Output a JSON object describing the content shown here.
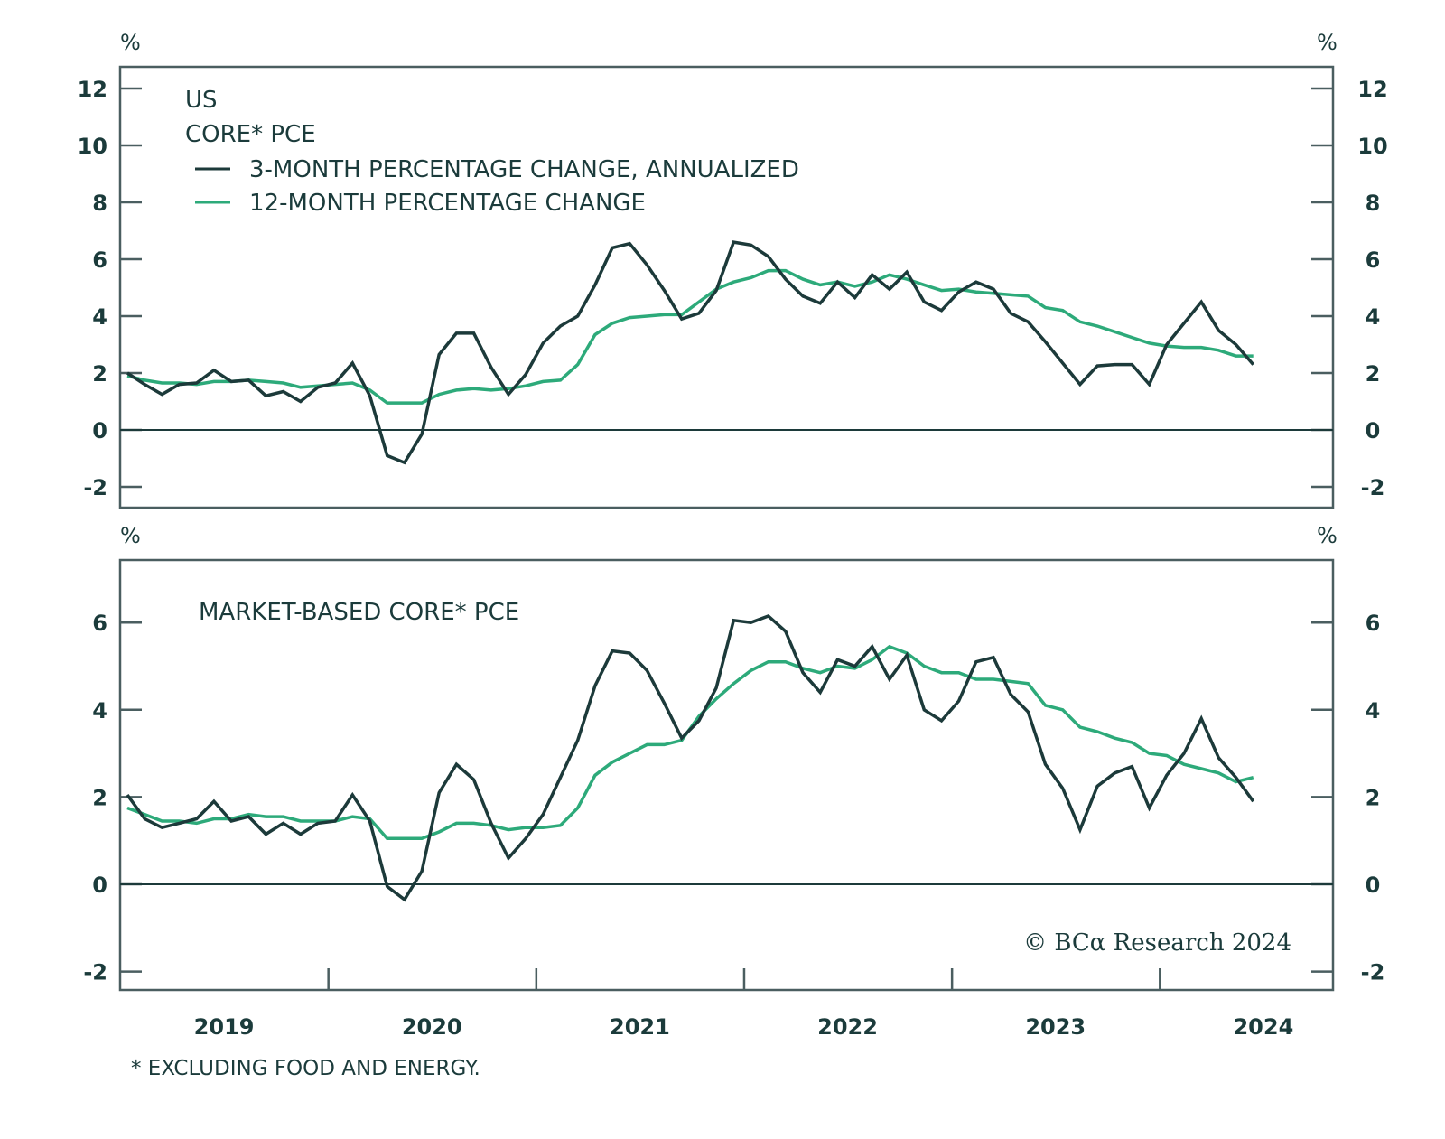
{
  "colors": {
    "dark": "#1c3a3a",
    "green": "#2daa7a",
    "axis": "#4a5e60"
  },
  "footnote": "* EXCLUDING FOOD AND ENERGY.",
  "copyright": "© BCα Research 2024",
  "chart_data": [
    {
      "type": "line",
      "title": "US",
      "subtitle": "CORE* PCE",
      "ylabel_left": "%",
      "ylabel_right": "%",
      "ylim": [
        -2.7,
        12.7
      ],
      "yticks": [
        -2,
        0,
        2,
        4,
        6,
        8,
        10,
        12
      ],
      "x_start": "2019-01",
      "x_frequency": "monthly",
      "legend": [
        "3-MONTH PERCENTAGE CHANGE, ANNUALIZED",
        "12-MONTH PERCENTAGE CHANGE"
      ],
      "legend_position": "top-left",
      "series": [
        {
          "name": "3-MONTH PERCENTAGE CHANGE, ANNUALIZED",
          "color": "dark",
          "values": [
            2.0,
            1.6,
            1.25,
            1.6,
            1.65,
            2.1,
            1.7,
            1.75,
            1.2,
            1.35,
            1.0,
            1.5,
            1.65,
            2.35,
            1.2,
            -0.9,
            -1.15,
            -0.15,
            2.65,
            3.4,
            3.4,
            2.2,
            1.25,
            1.95,
            3.05,
            3.65,
            4.0,
            5.1,
            6.4,
            6.55,
            5.8,
            4.9,
            3.9,
            4.1,
            4.9,
            6.6,
            6.5,
            6.1,
            5.3,
            4.7,
            4.45,
            5.2,
            4.65,
            5.45,
            4.95,
            5.55,
            4.5,
            4.2,
            4.85,
            5.2,
            4.95,
            4.1,
            3.8,
            3.1,
            2.35,
            1.6,
            2.25,
            2.3,
            2.3,
            1.6,
            3.0,
            3.75,
            4.5,
            3.5,
            3.0,
            2.3
          ]
        },
        {
          "name": "12-MONTH PERCENTAGE CHANGE",
          "color": "green",
          "values": [
            1.9,
            1.75,
            1.65,
            1.65,
            1.6,
            1.7,
            1.7,
            1.75,
            1.7,
            1.65,
            1.5,
            1.55,
            1.6,
            1.65,
            1.4,
            0.95,
            0.95,
            0.95,
            1.25,
            1.4,
            1.45,
            1.4,
            1.45,
            1.55,
            1.7,
            1.75,
            2.3,
            3.35,
            3.75,
            3.95,
            4.0,
            4.05,
            4.05,
            4.5,
            4.95,
            5.2,
            5.35,
            5.6,
            5.6,
            5.3,
            5.1,
            5.2,
            5.05,
            5.2,
            5.45,
            5.3,
            5.1,
            4.9,
            4.95,
            4.85,
            4.8,
            4.75,
            4.7,
            4.3,
            4.2,
            3.8,
            3.65,
            3.45,
            3.25,
            3.05,
            2.95,
            2.9,
            2.9,
            2.8,
            2.6,
            2.6
          ]
        }
      ]
    },
    {
      "type": "line",
      "title": "MARKET-BASED CORE* PCE",
      "ylabel_left": "%",
      "ylabel_right": "%",
      "ylim": [
        -2.45,
        7.0
      ],
      "yticks": [
        -2,
        0,
        2,
        4,
        6
      ],
      "x_start": "2019-01",
      "x_frequency": "monthly",
      "xtick_labels": [
        "2019",
        "2020",
        "2021",
        "2022",
        "2023",
        "2024"
      ],
      "series": [
        {
          "name": "3-MONTH PERCENTAGE CHANGE, ANNUALIZED",
          "color": "dark",
          "values": [
            2.05,
            1.5,
            1.3,
            1.4,
            1.5,
            1.9,
            1.45,
            1.55,
            1.15,
            1.4,
            1.15,
            1.4,
            1.45,
            2.05,
            1.45,
            -0.05,
            -0.35,
            0.3,
            2.1,
            2.75,
            2.4,
            1.4,
            0.6,
            1.05,
            1.6,
            2.45,
            3.3,
            4.55,
            5.35,
            5.3,
            4.9,
            4.15,
            3.35,
            3.75,
            4.5,
            6.05,
            6.0,
            6.15,
            5.8,
            4.85,
            4.4,
            5.15,
            5.0,
            5.45,
            4.7,
            5.25,
            4.0,
            3.75,
            4.2,
            5.1,
            5.2,
            4.35,
            3.95,
            2.75,
            2.2,
            1.25,
            2.25,
            2.55,
            2.7,
            1.75,
            2.5,
            3.0,
            3.8,
            2.9,
            2.45,
            1.9
          ]
        },
        {
          "name": "12-MONTH PERCENTAGE CHANGE",
          "color": "green",
          "values": [
            1.75,
            1.6,
            1.45,
            1.45,
            1.4,
            1.5,
            1.5,
            1.6,
            1.55,
            1.55,
            1.45,
            1.45,
            1.45,
            1.55,
            1.5,
            1.05,
            1.05,
            1.05,
            1.2,
            1.4,
            1.4,
            1.35,
            1.25,
            1.3,
            1.3,
            1.35,
            1.75,
            2.5,
            2.8,
            3.0,
            3.2,
            3.2,
            3.3,
            3.85,
            4.25,
            4.6,
            4.9,
            5.1,
            5.1,
            4.95,
            4.85,
            5.0,
            4.95,
            5.15,
            5.45,
            5.3,
            5.0,
            4.85,
            4.85,
            4.7,
            4.7,
            4.65,
            4.6,
            4.1,
            4.0,
            3.6,
            3.5,
            3.35,
            3.25,
            3.0,
            2.95,
            2.75,
            2.65,
            2.55,
            2.35,
            2.45
          ]
        }
      ]
    }
  ]
}
